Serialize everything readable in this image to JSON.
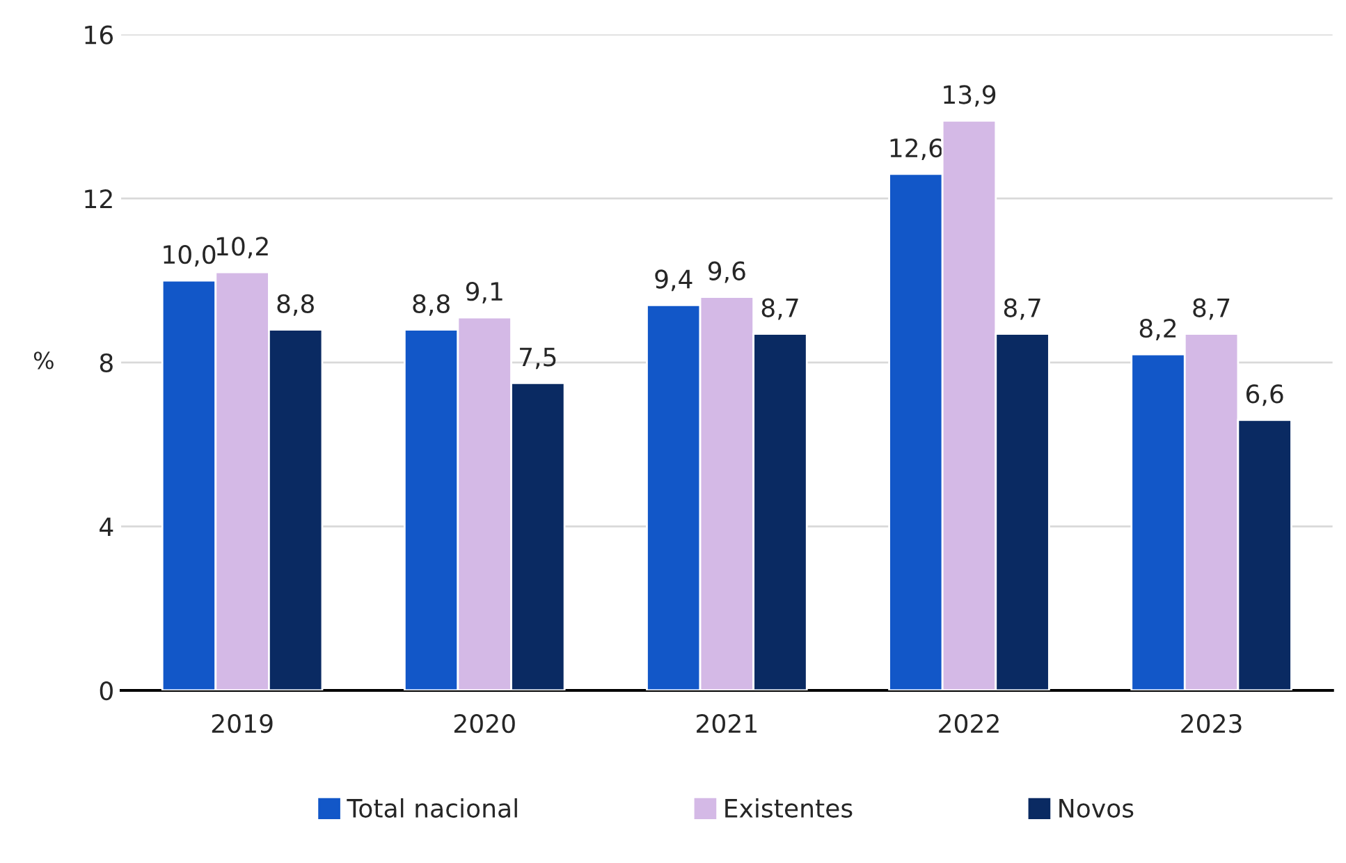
{
  "chart_data": {
    "type": "bar",
    "ylabel": "%",
    "categories": [
      "2019",
      "2020",
      "2021",
      "2022",
      "2023"
    ],
    "series": [
      {
        "name": "Total nacional",
        "color": "#1257c8",
        "values": [
          10.0,
          8.8,
          9.4,
          12.6,
          8.2
        ],
        "value_labels": [
          "10,0",
          "8,8",
          "9,4",
          "12,6",
          "8,2"
        ]
      },
      {
        "name": "Existentes",
        "color": "#d4b9e6",
        "values": [
          10.2,
          9.1,
          9.6,
          13.9,
          8.7
        ],
        "value_labels": [
          "10,2",
          "9,1",
          "9,6",
          "13,9",
          "8,7"
        ]
      },
      {
        "name": "Novos",
        "color": "#0a2a62",
        "values": [
          8.8,
          7.5,
          8.7,
          8.7,
          6.6
        ],
        "value_labels": [
          "8,8",
          "7,5",
          "8,7",
          "8,7",
          "6,6"
        ]
      }
    ],
    "ylim": [
      0,
      16
    ],
    "yticks": [
      0,
      4,
      8,
      12,
      16
    ],
    "grid": "y",
    "legend": "bottom"
  }
}
